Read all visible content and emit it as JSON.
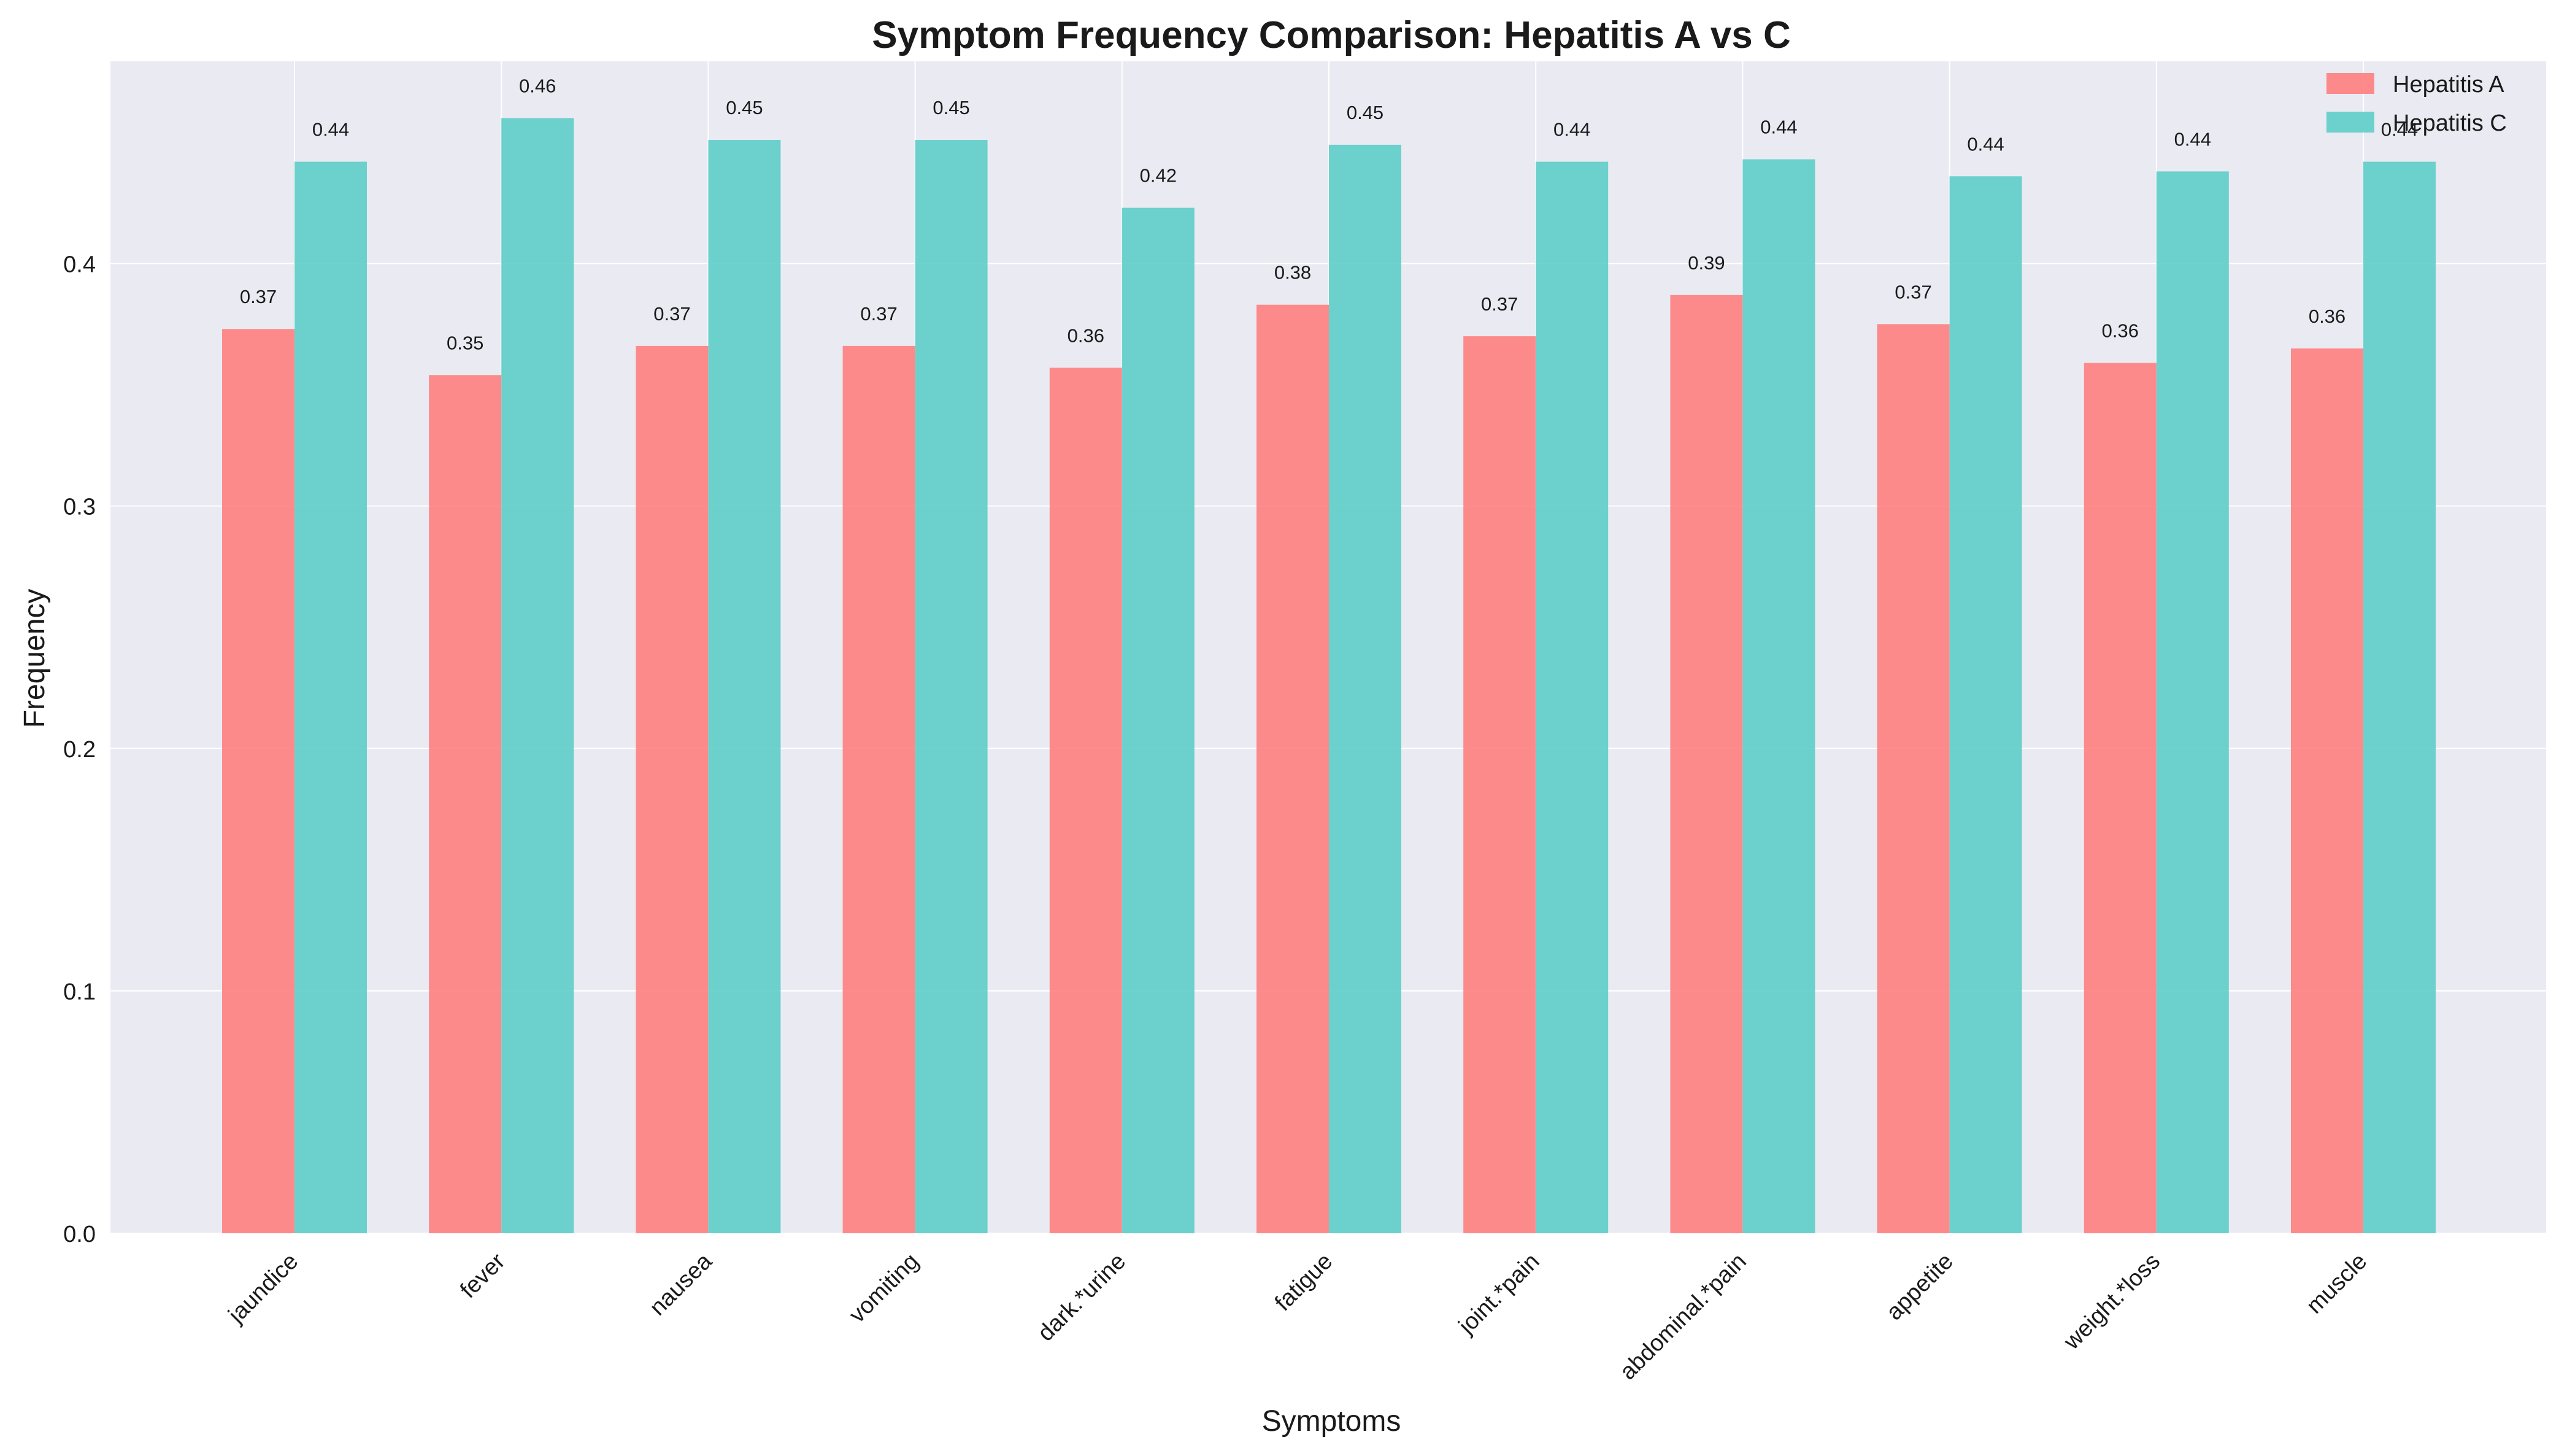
{
  "chart_data": {
    "type": "bar",
    "title": "Symptom Frequency Comparison: Hepatitis A vs C",
    "xlabel": "Symptoms",
    "ylabel": "Frequency",
    "categories": [
      "jaundice",
      "fever",
      "nausea",
      "vomiting",
      "dark.*urine",
      "fatigue",
      "joint.*pain",
      "abdominal.*pain",
      "appetite",
      "weight.*loss",
      "muscle"
    ],
    "series": [
      {
        "name": "Hepatitis A",
        "color": "#FF7F7F",
        "values": [
          0.373,
          0.354,
          0.366,
          0.366,
          0.357,
          0.383,
          0.37,
          0.387,
          0.375,
          0.359,
          0.365
        ],
        "labels": [
          "0.37",
          "0.35",
          "0.37",
          "0.37",
          "0.36",
          "0.38",
          "0.37",
          "0.39",
          "0.37",
          "0.36",
          "0.36"
        ]
      },
      {
        "name": "Hepatitis C",
        "color": "#5ECDC8",
        "values": [
          0.442,
          0.46,
          0.451,
          0.451,
          0.423,
          0.449,
          0.442,
          0.443,
          0.436,
          0.438,
          0.442
        ],
        "labels": [
          "0.44",
          "0.46",
          "0.45",
          "0.45",
          "0.42",
          "0.45",
          "0.44",
          "0.44",
          "0.44",
          "0.44",
          "0.44"
        ]
      }
    ],
    "yticks": [
      0.0,
      0.1,
      0.2,
      0.3,
      0.4
    ],
    "ytick_labels": [
      "0.0",
      "0.1",
      "0.2",
      "0.3",
      "0.4"
    ],
    "ylim": [
      0,
      0.4834
    ],
    "grid": true,
    "legend_position": "top-right",
    "plot_background": "#EAEAF2"
  }
}
